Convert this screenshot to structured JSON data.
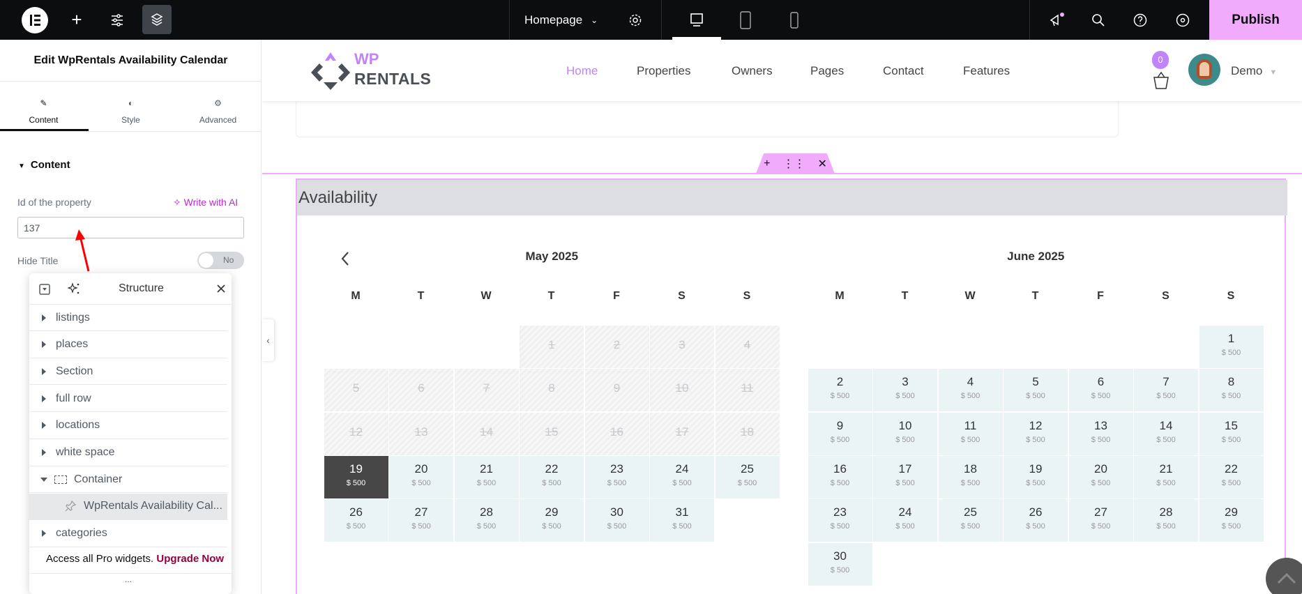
{
  "topbar": {
    "page_name": "Homepage",
    "publish": "Publish",
    "colors": {
      "accent": "#f0abfc"
    }
  },
  "panel": {
    "title": "Edit WpRentals Availability Calendar",
    "tabs": [
      {
        "label": "Content",
        "icon": "pencil-icon",
        "active": true
      },
      {
        "label": "Style",
        "icon": "contrast-icon"
      },
      {
        "label": "Advanced",
        "icon": "gear-icon"
      }
    ],
    "section": "Content",
    "id_label": "Id of the property",
    "write_ai": "Write with AI",
    "id_value": "137",
    "hide_title_label": "Hide Title",
    "hide_title_value": "No"
  },
  "site": {
    "logo_top": "WP",
    "logo_bottom": "RENTALS",
    "nav": [
      "Home",
      "Properties",
      "Owners",
      "Pages",
      "Contact",
      "Features"
    ],
    "active_nav": "Home",
    "cart_count": "0",
    "user": "Demo"
  },
  "widget": {
    "title": "Availability",
    "weekdays": [
      "M",
      "T",
      "W",
      "T",
      "F",
      "S",
      "S"
    ],
    "months": [
      {
        "title": "May 2025",
        "year": 2025,
        "month": 5,
        "unavailable_until": 18,
        "selected": 19,
        "price": "$ 500",
        "days": 31
      },
      {
        "title": "June 2025",
        "year": 2025,
        "month": 6,
        "unavailable_until": 0,
        "selected": null,
        "price": "$ 500",
        "days": 30
      }
    ]
  },
  "structure": {
    "title": "Structure",
    "items": [
      {
        "label": "listings"
      },
      {
        "label": "places"
      },
      {
        "label": "Section"
      },
      {
        "label": "full row"
      },
      {
        "label": "locations"
      },
      {
        "label": "white space"
      },
      {
        "label": "Container",
        "expanded": true
      },
      {
        "label": "WpRentals Availability Cal...",
        "child": true,
        "selected": true
      },
      {
        "label": "categories"
      }
    ],
    "promo": "Access all Pro widgets.",
    "upgrade": "Upgrade Now",
    "more": "..."
  }
}
